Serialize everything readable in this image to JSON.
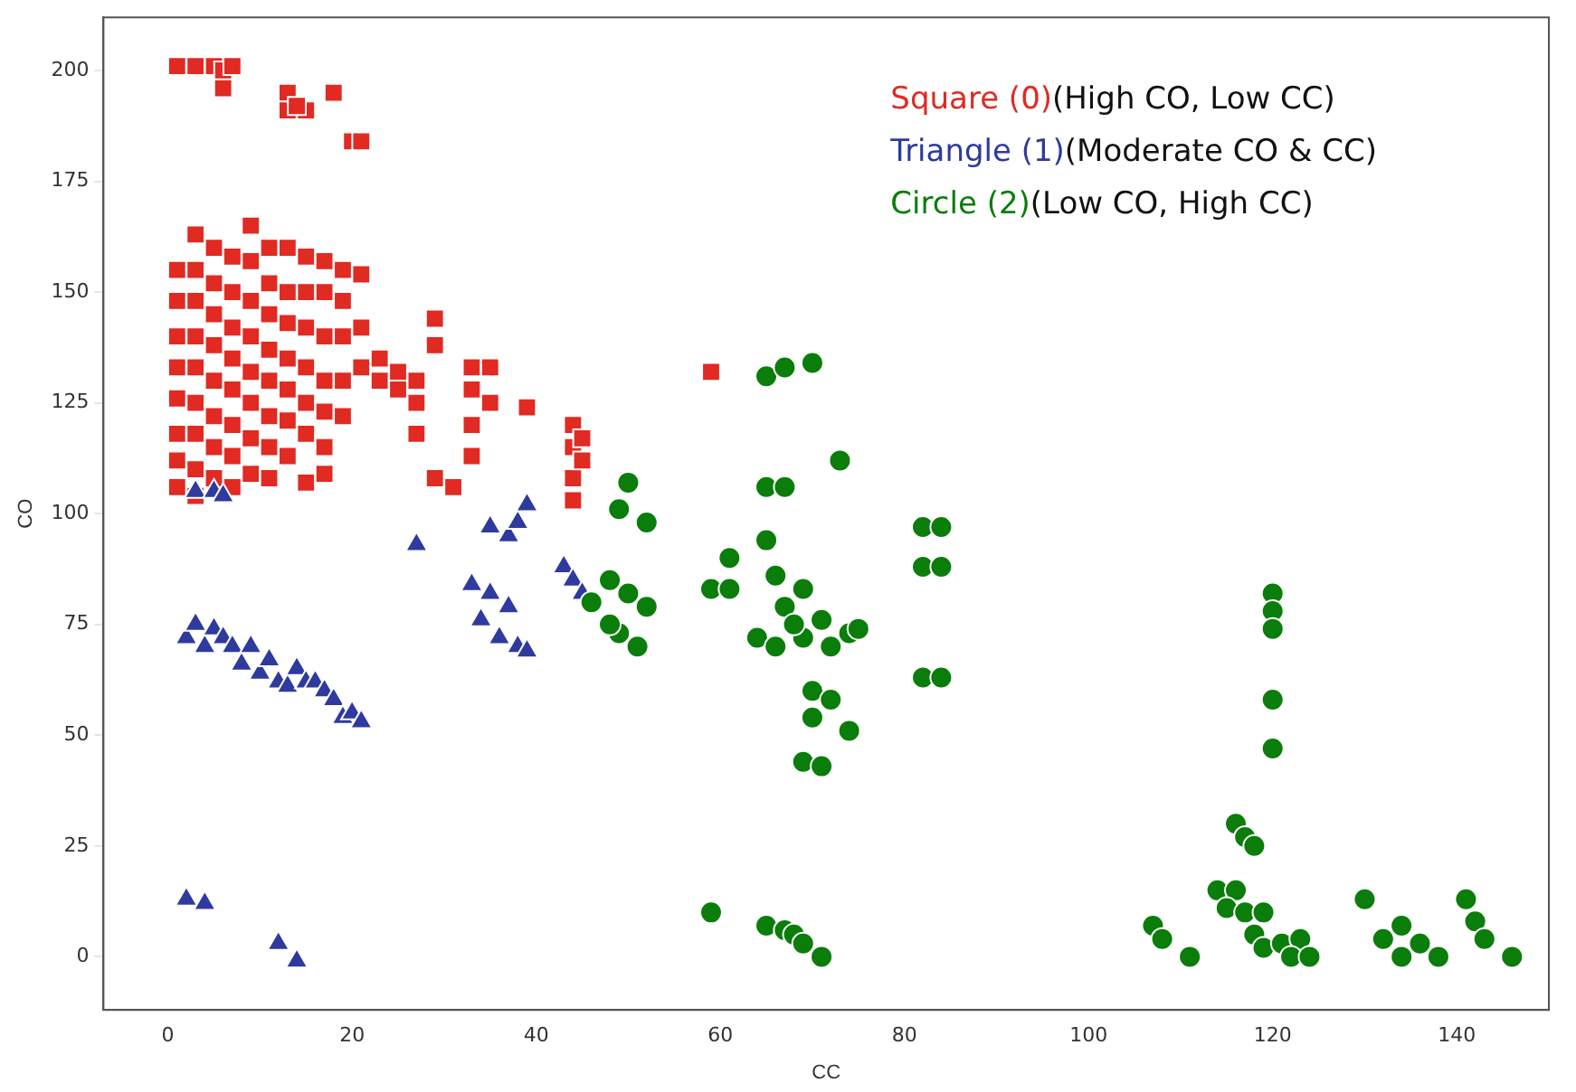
{
  "chart_data": {
    "type": "scatter",
    "xlabel": "CC",
    "ylabel": "CO",
    "xlim": [
      -7,
      150
    ],
    "ylim": [
      -12,
      212
    ],
    "xticks": [
      0,
      20,
      40,
      60,
      80,
      100,
      120,
      140
    ],
    "yticks": [
      0,
      25,
      50,
      75,
      100,
      125,
      150,
      175,
      200
    ],
    "grid": false,
    "legend": "top right",
    "series": [
      {
        "name": "Square (0)(High CO, Low CC)",
        "color": "#e02a22",
        "marker": "square",
        "x": [
          1,
          3,
          5,
          6,
          7,
          6,
          13,
          13,
          15,
          14,
          18,
          20,
          21,
          1,
          1,
          1,
          1,
          1,
          1,
          1,
          1,
          3,
          3,
          3,
          3,
          3,
          3,
          3,
          3,
          3,
          5,
          5,
          5,
          5,
          5,
          5,
          5,
          5,
          7,
          7,
          7,
          7,
          7,
          7,
          7,
          7,
          9,
          9,
          9,
          9,
          9,
          9,
          9,
          9,
          11,
          11,
          11,
          11,
          11,
          11,
          11,
          11,
          13,
          13,
          13,
          13,
          13,
          13,
          13,
          15,
          15,
          15,
          15,
          15,
          15,
          15,
          17,
          17,
          17,
          17,
          17,
          17,
          17,
          19,
          19,
          19,
          19,
          19,
          21,
          21,
          21,
          23,
          23,
          25,
          25,
          27,
          27,
          27,
          29,
          29,
          29,
          31,
          33,
          33,
          33,
          33,
          35,
          35,
          39,
          44,
          44,
          44,
          44,
          45,
          45,
          59
        ],
        "values": [
          201,
          201,
          201,
          200,
          201,
          196,
          195,
          191,
          191,
          192,
          195,
          184,
          184,
          155,
          148,
          140,
          133,
          126,
          118,
          112,
          106,
          163,
          155,
          148,
          140,
          133,
          125,
          118,
          110,
          104,
          160,
          152,
          145,
          138,
          130,
          122,
          115,
          108,
          158,
          150,
          142,
          135,
          128,
          120,
          113,
          106,
          165,
          157,
          148,
          140,
          132,
          125,
          117,
          109,
          160,
          152,
          145,
          137,
          130,
          122,
          115,
          108,
          160,
          150,
          143,
          135,
          128,
          121,
          113,
          158,
          150,
          142,
          133,
          125,
          118,
          107,
          157,
          150,
          140,
          130,
          123,
          115,
          109,
          155,
          148,
          140,
          130,
          122,
          154,
          142,
          133,
          135,
          130,
          132,
          128,
          130,
          125,
          118,
          144,
          138,
          108,
          106,
          133,
          128,
          120,
          113,
          133,
          125,
          124,
          120,
          115,
          108,
          103,
          117,
          112,
          132
        ]
      },
      {
        "name": "Triangle (1)(Moderate CO & CC)",
        "color": "#2e3a9e",
        "marker": "triangle",
        "x": [
          3,
          5,
          6,
          2,
          3,
          4,
          5,
          6,
          7,
          8,
          9,
          10,
          11,
          12,
          13,
          14,
          15,
          16,
          17,
          18,
          19,
          20,
          21,
          27,
          33,
          34,
          35,
          37,
          36,
          38,
          39,
          35,
          37,
          38,
          39,
          43,
          44,
          45,
          2,
          4,
          12,
          14
        ],
        "values": [
          105,
          105,
          104,
          72,
          75,
          70,
          74,
          72,
          70,
          66,
          70,
          64,
          67,
          62,
          61,
          65,
          62,
          62,
          60,
          58,
          54,
          55,
          53,
          93,
          84,
          76,
          82,
          79,
          72,
          70,
          69,
          97,
          95,
          98,
          102,
          88,
          85,
          82,
          13,
          12,
          3,
          -1
        ]
      },
      {
        "name": "Circle (2)(Low CO, High CC)",
        "color": "#0a7d0a",
        "marker": "circle",
        "x": [
          49,
          50,
          52,
          48,
          50,
          52,
          49,
          51,
          48,
          46,
          65,
          67,
          70,
          73,
          65,
          67,
          59,
          61,
          61,
          65,
          66,
          67,
          69,
          64,
          66,
          68,
          69,
          71,
          70,
          72,
          74,
          70,
          69,
          71,
          72,
          74,
          75,
          82,
          84,
          82,
          84,
          82,
          84,
          59,
          65,
          67,
          68,
          69,
          71,
          107,
          108,
          111,
          114,
          116,
          115,
          117,
          119,
          118,
          119,
          121,
          123,
          122,
          124,
          116,
          117,
          118,
          120,
          120,
          120,
          120,
          120,
          130,
          132,
          134,
          134,
          136,
          138,
          141,
          142,
          143,
          146
        ],
        "values": [
          101,
          107,
          98,
          85,
          82,
          79,
          73,
          70,
          75,
          80,
          131,
          133,
          134,
          112,
          106,
          106,
          83,
          90,
          83,
          94,
          86,
          79,
          72,
          72,
          70,
          75,
          83,
          76,
          60,
          58,
          51,
          54,
          44,
          43,
          70,
          73,
          74,
          97,
          97,
          88,
          88,
          63,
          63,
          10,
          7,
          6,
          5,
          3,
          0,
          7,
          4,
          0,
          15,
          15,
          11,
          10,
          10,
          5,
          2,
          3,
          4,
          0,
          0,
          30,
          27,
          25,
          82,
          78,
          74,
          58,
          47,
          13,
          4,
          7,
          0,
          3,
          0,
          13,
          8,
          4,
          0
        ]
      }
    ]
  }
}
